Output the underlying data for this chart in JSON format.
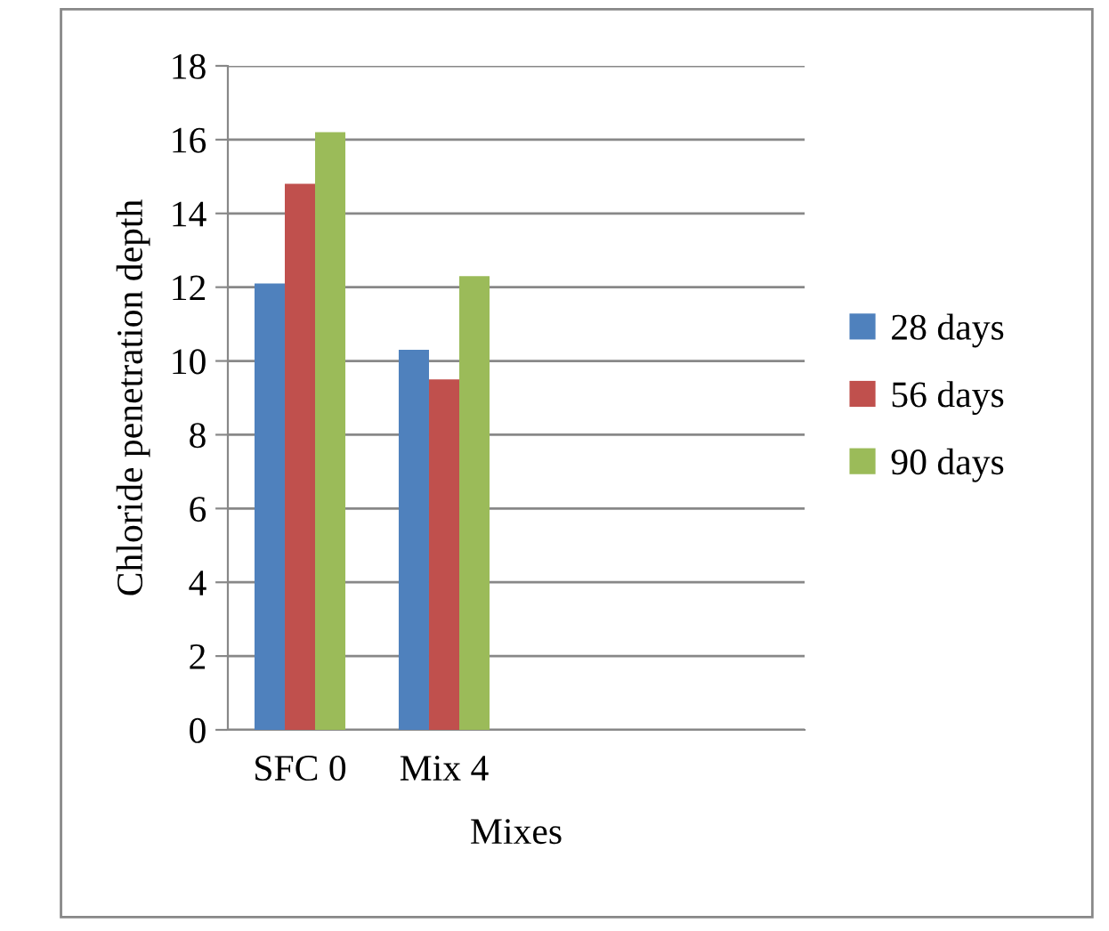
{
  "chart_data": {
    "type": "bar",
    "xlabel": "Mixes",
    "ylabel": "Chloride penetration depth",
    "categories": [
      "SFC 0",
      "Mix 4",
      null,
      null
    ],
    "series": [
      {
        "name": "28 days",
        "color": "#4f81bd",
        "values": [
          12.1,
          10.3,
          null,
          null
        ]
      },
      {
        "name": "56 days",
        "color": "#c0504d",
        "values": [
          14.8,
          9.5,
          null,
          null
        ]
      },
      {
        "name": "90 days",
        "color": "#9bbb59",
        "values": [
          16.2,
          12.3,
          null,
          null
        ]
      }
    ],
    "ylim": [
      0,
      18
    ],
    "yticks": [
      0,
      2,
      4,
      6,
      8,
      10,
      12,
      14,
      16,
      18
    ],
    "grid": "y",
    "legend": "right"
  }
}
